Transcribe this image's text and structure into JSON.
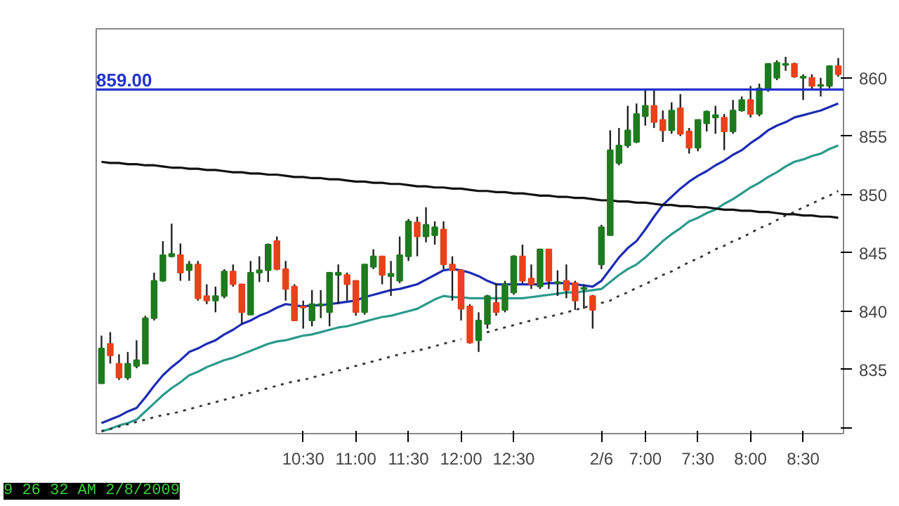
{
  "chart_data": {
    "type": "candlestick",
    "categories": [
      null,
      null,
      null,
      null,
      null,
      null,
      null,
      null,
      null,
      null,
      null,
      null,
      null,
      null,
      null,
      null,
      null,
      null,
      null,
      null,
      null,
      null,
      null,
      "10:30",
      null,
      null,
      null,
      null,
      null,
      "11:00",
      null,
      null,
      null,
      null,
      null,
      "11:30",
      null,
      null,
      null,
      null,
      null,
      "12:00",
      null,
      null,
      null,
      null,
      null,
      "12:30",
      null,
      null,
      null,
      null,
      null,
      null,
      null,
      null,
      null,
      "2/6",
      null,
      null,
      null,
      null,
      "7:00",
      null,
      null,
      null,
      null,
      null,
      "7:30",
      null,
      null,
      null,
      null,
      null,
      "8:00",
      null,
      null,
      null,
      null,
      null,
      "8:30",
      null,
      null,
      null,
      null
    ],
    "ohlc": [
      [
        833.8,
        837.9,
        833.8,
        836.8
      ],
      [
        837.2,
        838.2,
        835.5,
        836.2
      ],
      [
        835.5,
        836.3,
        834.1,
        834.3
      ],
      [
        834.3,
        836.5,
        834.1,
        835.5
      ],
      [
        835.3,
        837.5,
        835.1,
        835.8
      ],
      [
        835.5,
        839.6,
        835.5,
        839.4
      ],
      [
        839.4,
        843.3,
        839.2,
        842.6
      ],
      [
        842.6,
        846.0,
        842.5,
        844.8
      ],
      [
        844.7,
        847.5,
        844.6,
        844.9
      ],
      [
        844.8,
        845.8,
        842.6,
        843.3
      ],
      [
        843.5,
        844.3,
        842.6,
        844.0
      ],
      [
        844.0,
        844.3,
        840.9,
        841.1
      ],
      [
        841.3,
        842.3,
        840.6,
        840.9
      ],
      [
        840.9,
        842.1,
        839.9,
        841.3
      ],
      [
        841.3,
        843.6,
        841.1,
        843.4
      ],
      [
        843.4,
        844.0,
        842.1,
        842.3
      ],
      [
        842.3,
        842.3,
        838.9,
        839.9
      ],
      [
        839.7,
        844.3,
        839.7,
        843.3
      ],
      [
        843.3,
        844.7,
        842.5,
        843.5
      ],
      [
        843.5,
        845.8,
        842.5,
        845.7
      ],
      [
        846.0,
        846.4,
        843.5,
        843.6
      ],
      [
        843.6,
        844.3,
        840.9,
        841.9
      ],
      [
        842.1,
        842.3,
        839.2,
        839.2
      ],
      [
        840.4,
        840.9,
        838.5,
        840.3
      ],
      [
        839.2,
        841.8,
        838.7,
        840.6
      ],
      [
        840.5,
        841.8,
        839.4,
        840.6
      ],
      [
        839.9,
        843.3,
        838.7,
        843.3
      ],
      [
        843.1,
        844.0,
        840.6,
        843.3
      ],
      [
        843.1,
        843.3,
        840.9,
        842.3
      ],
      [
        842.6,
        842.6,
        839.6,
        839.9
      ],
      [
        839.9,
        844.0,
        839.7,
        844.0
      ],
      [
        843.8,
        845.3,
        843.6,
        844.7
      ],
      [
        844.7,
        844.7,
        842.3,
        843.1
      ],
      [
        843.0,
        844.3,
        841.3,
        843.2
      ],
      [
        842.6,
        846.4,
        842.4,
        844.8
      ],
      [
        844.7,
        847.9,
        844.3,
        847.7
      ],
      [
        847.6,
        848.1,
        844.7,
        846.4
      ],
      [
        846.4,
        848.9,
        845.9,
        847.4
      ],
      [
        846.5,
        847.7,
        845.7,
        847.2
      ],
      [
        847.0,
        847.7,
        843.6,
        844.0
      ],
      [
        844.0,
        844.7,
        840.9,
        843.5
      ],
      [
        843.5,
        843.6,
        839.2,
        840.2
      ],
      [
        840.4,
        840.6,
        837.2,
        837.3
      ],
      [
        837.5,
        839.9,
        836.5,
        839.2
      ],
      [
        838.9,
        841.4,
        838.5,
        841.3
      ],
      [
        840.7,
        842.4,
        839.6,
        839.9
      ],
      [
        840.1,
        842.6,
        839.9,
        842.3
      ],
      [
        841.6,
        844.8,
        841.4,
        844.7
      ],
      [
        844.7,
        845.7,
        842.4,
        842.6
      ],
      [
        842.8,
        844.0,
        841.9,
        842.3
      ],
      [
        842.1,
        845.3,
        841.9,
        845.3
      ],
      [
        845.3,
        845.3,
        841.9,
        842.6
      ],
      [
        842.4,
        843.5,
        841.3,
        842.5
      ],
      [
        842.6,
        844.0,
        841.1,
        841.8
      ],
      [
        842.4,
        842.6,
        840.1,
        840.9
      ],
      [
        841.9,
        842.3,
        840.2,
        842.0
      ],
      [
        841.3,
        841.4,
        838.5,
        840.1
      ],
      [
        844.0,
        847.4,
        843.6,
        847.2
      ],
      [
        846.5,
        855.5,
        846.5,
        853.8
      ],
      [
        852.7,
        855.7,
        852.5,
        854.2
      ],
      [
        854.2,
        857.6,
        854.0,
        855.5
      ],
      [
        854.5,
        857.8,
        854.4,
        856.9
      ],
      [
        856.7,
        858.9,
        855.9,
        857.6
      ],
      [
        857.6,
        858.9,
        855.7,
        856.2
      ],
      [
        856.4,
        857.2,
        854.5,
        855.5
      ],
      [
        855.5,
        857.9,
        855.2,
        857.2
      ],
      [
        857.4,
        858.6,
        855.0,
        855.2
      ],
      [
        855.4,
        855.7,
        853.5,
        854.0
      ],
      [
        854.0,
        856.4,
        853.7,
        856.4
      ],
      [
        856.1,
        857.2,
        855.4,
        857.1
      ],
      [
        856.6,
        857.6,
        855.2,
        856.8
      ],
      [
        856.6,
        856.9,
        853.8,
        855.4
      ],
      [
        855.4,
        858.1,
        855.2,
        857.2
      ],
      [
        857.2,
        858.4,
        857.1,
        858.1
      ],
      [
        858.1,
        859.3,
        856.6,
        856.9
      ],
      [
        856.9,
        859.5,
        856.7,
        859.1
      ],
      [
        859.1,
        861.2,
        858.8,
        861.2
      ],
      [
        860.0,
        861.5,
        859.8,
        861.3
      ],
      [
        861.1,
        861.8,
        860.6,
        861.2
      ],
      [
        861.2,
        861.3,
        860.0,
        860.1
      ],
      [
        860.0,
        860.3,
        858.1,
        860.1
      ],
      [
        860.0,
        860.3,
        858.9,
        859.3
      ],
      [
        859.3,
        860.0,
        858.4,
        859.4
      ],
      [
        859.3,
        861.0,
        859.1,
        861.0
      ],
      [
        861.0,
        861.7,
        860.1,
        860.3
      ]
    ],
    "colors": [
      "#1e7a1e",
      "#e8411c",
      "#e8411c",
      "#1e7a1e",
      "#1e7a1e",
      "#1e7a1e",
      "#1e7a1e",
      "#1e7a1e",
      "#1e7a1e",
      "#e8411c",
      "#1e7a1e",
      "#e8411c",
      "#e8411c",
      "#1e7a1e",
      "#1e7a1e",
      "#e8411c",
      "#e8411c",
      "#1e7a1e",
      "#1e7a1e",
      "#1e7a1e",
      "#e8411c",
      "#e8411c",
      "#e8411c",
      "#e8411c",
      "#1e7a1e",
      "#1e7a1e",
      "#1e7a1e",
      "#1e7a1e",
      "#e8411c",
      "#e8411c",
      "#1e7a1e",
      "#1e7a1e",
      "#e8411c",
      "#1e7a1e",
      "#1e7a1e",
      "#1e7a1e",
      "#e8411c",
      "#1e7a1e",
      "#1e7a1e",
      "#e8411c",
      "#e8411c",
      "#e8411c",
      "#e8411c",
      "#1e7a1e",
      "#1e7a1e",
      "#e8411c",
      "#1e7a1e",
      "#1e7a1e",
      "#e8411c",
      "#e8411c",
      "#1e7a1e",
      "#e8411c",
      "#1e7a1e",
      "#e8411c",
      "#e8411c",
      "#1e7a1e",
      "#e8411c",
      "#1e7a1e",
      "#1e7a1e",
      "#1e7a1e",
      "#1e7a1e",
      "#1e7a1e",
      "#1e7a1e",
      "#e8411c",
      "#e8411c",
      "#1e7a1e",
      "#e8411c",
      "#e8411c",
      "#1e7a1e",
      "#1e7a1e",
      "#1e7a1e",
      "#e8411c",
      "#1e7a1e",
      "#1e7a1e",
      "#e8411c",
      "#1e7a1e",
      "#1e7a1e",
      "#1e7a1e",
      "#1e7a1e",
      "#e8411c",
      "#1e7a1e",
      "#e8411c",
      "#1e7a1e",
      "#1e7a1e",
      "#e8411c"
    ],
    "series": [
      {
        "type": "line",
        "color": "#1c2cb4",
        "line_style": "solid",
        "values": [
          830.4,
          830.7,
          831.0,
          831.4,
          831.7,
          832.6,
          833.6,
          834.5,
          835.2,
          835.8,
          836.5,
          836.8,
          837.2,
          837.5,
          838.0,
          838.4,
          838.9,
          839.2,
          839.6,
          839.9,
          840.3,
          840.6,
          840.5,
          840.4,
          840.5,
          840.5,
          840.6,
          840.7,
          840.8,
          840.9,
          841.2,
          841.4,
          841.6,
          841.8,
          841.9,
          842.1,
          842.3,
          842.7,
          843.1,
          843.5,
          843.6,
          843.5,
          843.3,
          843.0,
          842.6,
          842.3,
          842.3,
          842.3,
          842.3,
          842.3,
          842.3,
          842.4,
          842.4,
          842.4,
          842.3,
          842.2,
          842.1,
          842.6,
          843.6,
          844.6,
          845.4,
          846.0,
          847.0,
          848.1,
          849.1,
          849.8,
          850.5,
          851.1,
          851.6,
          852.0,
          852.5,
          852.9,
          853.4,
          853.8,
          854.4,
          854.9,
          855.5,
          855.9,
          856.2,
          856.6,
          856.8,
          857.0,
          857.2,
          857.5,
          857.8
        ]
      },
      {
        "type": "line",
        "color": "#2a9a8c",
        "line_style": "solid",
        "values": [
          829.7,
          829.9,
          830.2,
          830.4,
          830.7,
          831.4,
          832.1,
          832.8,
          833.4,
          833.9,
          834.5,
          834.8,
          835.2,
          835.5,
          835.8,
          836.0,
          836.3,
          836.6,
          836.9,
          837.2,
          837.4,
          837.5,
          837.7,
          837.9,
          838.0,
          838.2,
          838.4,
          838.6,
          838.7,
          838.9,
          839.1,
          839.3,
          839.5,
          839.6,
          839.8,
          840.0,
          840.2,
          840.6,
          841.0,
          841.3,
          841.2,
          841.2,
          841.1,
          841.1,
          841.1,
          841.1,
          841.1,
          841.1,
          841.1,
          841.2,
          841.3,
          841.4,
          841.5,
          841.6,
          841.6,
          841.7,
          841.8,
          841.9,
          842.5,
          843.1,
          843.6,
          844.0,
          844.6,
          845.3,
          846.0,
          846.6,
          847.1,
          847.7,
          848.0,
          848.4,
          848.7,
          849.2,
          849.6,
          850.1,
          850.6,
          851.0,
          851.5,
          851.9,
          852.4,
          852.8,
          853.0,
          853.3,
          853.5,
          853.9,
          854.2
        ]
      },
      {
        "type": "line",
        "color": "#333333",
        "line_style": "dotted",
        "values": [
          829.7,
          829.9,
          830.1,
          830.3,
          830.5,
          830.7,
          830.9,
          831.1,
          831.2,
          831.4,
          831.6,
          831.8,
          832.0,
          832.2,
          832.4,
          832.6,
          832.8,
          833.0,
          833.2,
          833.4,
          833.6,
          833.8,
          834.0,
          834.1,
          834.3,
          834.5,
          834.7,
          834.9,
          835.1,
          835.3,
          835.5,
          835.7,
          835.9,
          836.1,
          836.3,
          836.5,
          836.6,
          836.8,
          837.0,
          837.2,
          837.4,
          837.6,
          null,
          838.0,
          838.2,
          838.4,
          838.6,
          838.8,
          839.0,
          839.2,
          839.4,
          839.5,
          839.7,
          839.9,
          840.1,
          840.3,
          840.5,
          840.7,
          840.9,
          841.3,
          841.6,
          842.0,
          842.3,
          842.7,
          843.1,
          843.4,
          843.8,
          844.2,
          844.5,
          844.9,
          845.3,
          845.6,
          846.0,
          846.3,
          846.7,
          847.1,
          847.4,
          847.8,
          848.2,
          848.5,
          848.9,
          849.2,
          849.6,
          849.9,
          850.3
        ]
      },
      {
        "type": "line",
        "color": "#111111",
        "line_style": "solid",
        "values": [
          852.8,
          852.7,
          852.7,
          852.6,
          852.6,
          852.5,
          852.5,
          852.4,
          852.3,
          852.3,
          852.2,
          852.2,
          852.1,
          852.1,
          852.0,
          851.9,
          851.9,
          851.8,
          851.8,
          851.7,
          851.7,
          851.6,
          851.5,
          851.5,
          851.4,
          851.4,
          851.3,
          851.3,
          851.2,
          851.1,
          851.1,
          851.0,
          851.0,
          850.9,
          850.9,
          850.8,
          850.7,
          850.7,
          850.6,
          850.6,
          850.5,
          850.5,
          850.4,
          850.3,
          850.3,
          850.2,
          850.2,
          850.1,
          850.1,
          850.0,
          849.9,
          849.9,
          849.8,
          849.8,
          849.7,
          849.7,
          849.6,
          849.5,
          849.5,
          849.4,
          849.4,
          849.3,
          849.3,
          849.2,
          849.1,
          849.1,
          849.0,
          849.0,
          848.9,
          848.9,
          848.8,
          848.7,
          848.7,
          848.6,
          848.6,
          848.5,
          848.5,
          848.4,
          848.3,
          848.3,
          848.2,
          848.2,
          848.1,
          848.1,
          848.0
        ]
      }
    ],
    "ref_lines": [
      {
        "axis": "y",
        "value": 859,
        "label": "859.00",
        "color": "#2233cc"
      }
    ],
    "annotations": [
      "9 26 32 AM 2/8/2009"
    ],
    "ylim": [
      829.5,
      864.2
    ],
    "yticks": [
      {
        "value": 830,
        "label": null
      },
      835,
      840,
      845,
      850,
      855,
      860
    ],
    "grid": false
  }
}
